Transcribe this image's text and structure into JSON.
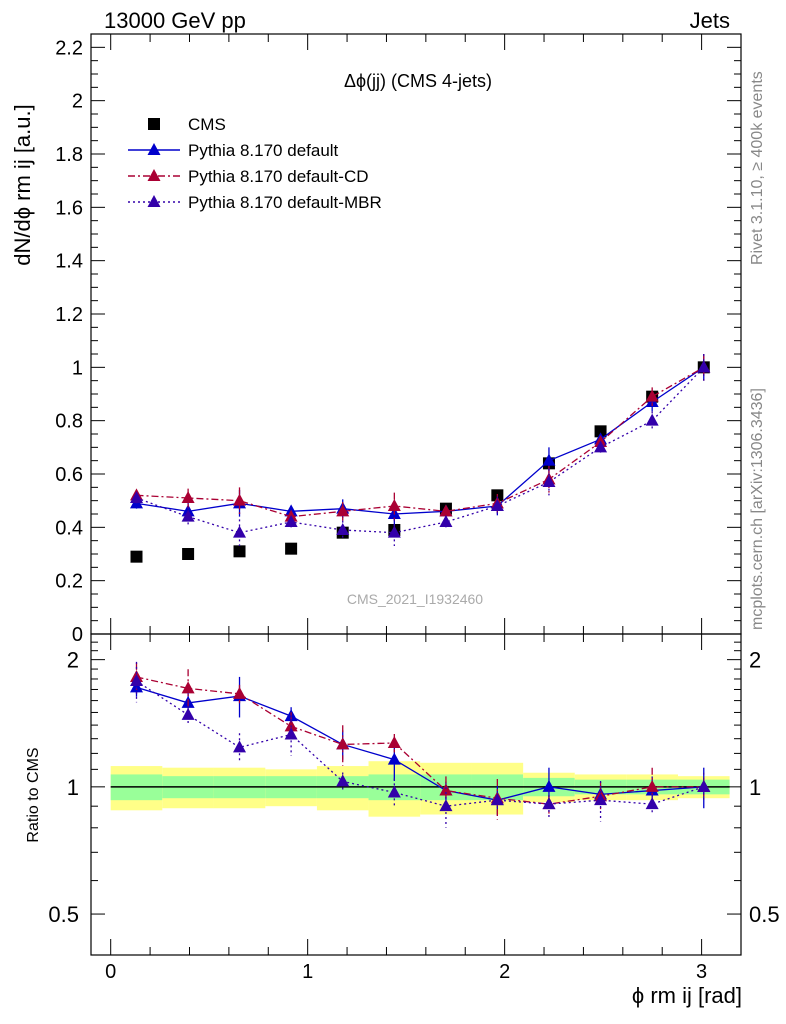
{
  "header": {
    "energy": "13000 GeV pp",
    "process": "Jets"
  },
  "side": {
    "rivet": "Rivet 3.1.10, ≥ 400k events",
    "mcplots": "mcplots.cern.ch [arXiv:1306.3436]"
  },
  "colors": {
    "cms": "#000000",
    "default": "#0000cc",
    "cd": "#aa0033",
    "mbr": "#3300aa",
    "band_inner": "#99ff99",
    "band_outer": "#ffff88"
  },
  "chart_data": [
    {
      "type": "scatter",
      "title": "Δϕ(jj) (CMS 4-jets)",
      "watermark": "CMS_2021_I1932460",
      "ylabel": "dN/dϕ rm ij [a.u.]",
      "xlabel": "ϕ rm ij [rad]",
      "xlim": [
        -0.1,
        3.2
      ],
      "ylim": [
        0,
        2.25
      ],
      "xticks": [
        "0",
        "1",
        "2",
        "3"
      ],
      "yticks": [
        "0",
        "0.2",
        "0.4",
        "0.6",
        "0.8",
        "1",
        "1.2",
        "1.4",
        "1.6",
        "1.8",
        "2",
        "2.2"
      ],
      "legend_position": "top-left",
      "x": [
        0.131,
        0.393,
        0.654,
        0.916,
        1.178,
        1.44,
        1.702,
        1.963,
        2.225,
        2.487,
        2.749,
        3.011
      ],
      "series": [
        {
          "name": "CMS",
          "style": "square",
          "values": [
            0.29,
            0.3,
            0.31,
            0.32,
            0.38,
            0.39,
            0.47,
            0.52,
            0.64,
            0.76,
            0.89,
            1.0
          ]
        },
        {
          "name": "Pythia 8.170 default",
          "style": "solid",
          "values": [
            0.49,
            0.46,
            0.49,
            0.46,
            0.47,
            0.45,
            0.46,
            0.48,
            0.65,
            0.73,
            0.87,
            1.0
          ]
        },
        {
          "name": "Pythia 8.170 default-CD",
          "style": "dashdot",
          "values": [
            0.52,
            0.51,
            0.5,
            0.44,
            0.46,
            0.48,
            0.46,
            0.49,
            0.58,
            0.72,
            0.89,
            1.0
          ]
        },
        {
          "name": "Pythia 8.170 default-MBR",
          "style": "dotted",
          "values": [
            0.51,
            0.44,
            0.38,
            0.42,
            0.39,
            0.38,
            0.42,
            0.48,
            0.57,
            0.7,
            0.8,
            1.0
          ]
        }
      ]
    },
    {
      "type": "line",
      "ylabel": "Ratio to CMS",
      "xlim": [
        -0.1,
        3.2
      ],
      "ylim": [
        0.4,
        2.3
      ],
      "yscale": "log",
      "yticks": [
        "0.5",
        "1",
        "2"
      ],
      "x": [
        0.131,
        0.393,
        0.654,
        0.916,
        1.178,
        1.44,
        1.702,
        1.963,
        2.225,
        2.487,
        2.749,
        3.011
      ],
      "series": [
        {
          "name": "Pythia 8.170 default",
          "values": [
            1.72,
            1.58,
            1.64,
            1.47,
            1.26,
            1.16,
            0.98,
            0.93,
            1.0,
            0.96,
            0.98,
            1.0
          ]
        },
        {
          "name": "Pythia 8.170 default-CD",
          "values": [
            1.82,
            1.71,
            1.66,
            1.39,
            1.26,
            1.27,
            0.98,
            0.94,
            0.91,
            0.95,
            1.0,
            1.0
          ]
        },
        {
          "name": "Pythia 8.170 default-MBR",
          "values": [
            1.78,
            1.48,
            1.24,
            1.33,
            1.03,
            0.97,
            0.9,
            0.93,
            0.91,
            0.93,
            0.91,
            1.0
          ]
        }
      ]
    }
  ]
}
